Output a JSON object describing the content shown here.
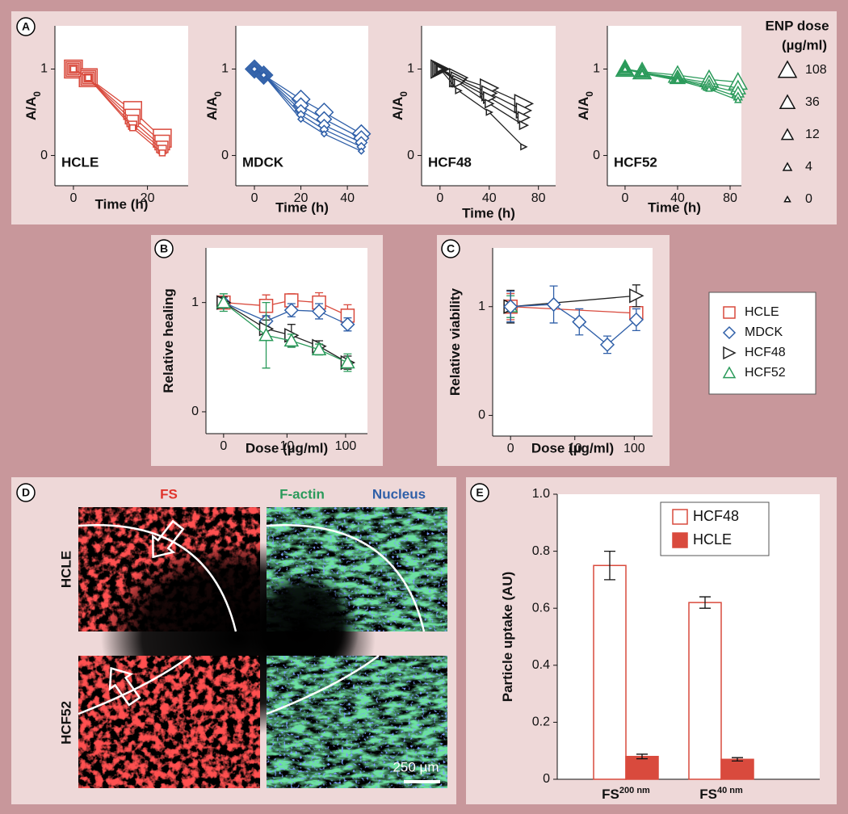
{
  "panel_labels": [
    "A",
    "B",
    "C",
    "D",
    "E"
  ],
  "dose_legend": {
    "title": "ENP dose",
    "unit": "(µg/ml)",
    "doses": [
      108,
      36,
      12,
      4,
      0
    ]
  },
  "cell_legend": [
    "HCLE",
    "MDCK",
    "HCF48",
    "HCF52"
  ],
  "panel_D": {
    "channels": [
      "FS",
      "F-actin",
      "Nucleus"
    ],
    "rows": [
      "HCLE",
      "HCF52"
    ],
    "scale_bar": "250 µm"
  },
  "chart_data": [
    {
      "type": "line",
      "annotation": "HCLE",
      "x_label": "Time (h)",
      "y_label": "A/A",
      "y_label_subscript": "0",
      "color": "#d94a3d",
      "marker": "square",
      "x": [
        0,
        4,
        16,
        24
      ],
      "xlim": [
        -5,
        31
      ],
      "xticks": [
        0,
        20
      ],
      "ylim": [
        -0.35,
        1.5
      ],
      "yticks": [
        0,
        1
      ],
      "series": [
        {
          "values": [
            1,
            0.9,
            0.52,
            0.2
          ]
        },
        {
          "values": [
            1,
            0.9,
            0.45,
            0.15
          ]
        },
        {
          "values": [
            1,
            0.9,
            0.4,
            0.1
          ]
        },
        {
          "values": [
            1,
            0.9,
            0.35,
            0.07
          ]
        },
        {
          "values": [
            1,
            0.9,
            0.32,
            0.03
          ]
        }
      ]
    },
    {
      "type": "line",
      "annotation": "MDCK",
      "x_label": "Time (h)",
      "y_label": "A/A",
      "y_label_subscript": "0",
      "color": "#2f5fa8",
      "marker": "diamond",
      "x": [
        0,
        4,
        20,
        30,
        46
      ],
      "xlim": [
        -8,
        49
      ],
      "xticks": [
        0,
        20,
        40
      ],
      "ylim": [
        -0.35,
        1.5
      ],
      "yticks": [
        0,
        1
      ],
      "series": [
        {
          "values": [
            1,
            0.93,
            0.65,
            0.5,
            0.25
          ]
        },
        {
          "values": [
            1,
            0.93,
            0.58,
            0.42,
            0.2
          ]
        },
        {
          "values": [
            1,
            0.93,
            0.52,
            0.35,
            0.15
          ]
        },
        {
          "values": [
            1,
            0.93,
            0.47,
            0.3,
            0.1
          ]
        },
        {
          "values": [
            1,
            0.93,
            0.42,
            0.25,
            0.05
          ]
        }
      ]
    },
    {
      "type": "line",
      "annotation": "HCF48",
      "x_label": "Time (h)",
      "y_label": "A/A",
      "y_label_subscript": "0",
      "color": "#222222",
      "marker": "triangle-right",
      "x": [
        0,
        15,
        40,
        68
      ],
      "xlim": [
        -15,
        94
      ],
      "xticks": [
        0,
        40,
        80
      ],
      "ylim": [
        -0.35,
        1.5
      ],
      "yticks": [
        0,
        1
      ],
      "series": [
        {
          "values": [
            1,
            0.9,
            0.78,
            0.6
          ]
        },
        {
          "values": [
            1,
            0.88,
            0.72,
            0.52
          ]
        },
        {
          "values": [
            1,
            0.86,
            0.67,
            0.44
          ]
        },
        {
          "values": [
            1,
            0.84,
            0.6,
            0.35
          ]
        },
        {
          "values": [
            1,
            0.75,
            0.5,
            0.1
          ]
        }
      ]
    },
    {
      "type": "line",
      "annotation": "HCF52",
      "x_label": "Time (h)",
      "y_label": "A/A",
      "y_label_subscript": "0",
      "color": "#2a9a5a",
      "marker": "triangle-up",
      "x": [
        0,
        13,
        40,
        64,
        86
      ],
      "xlim": [
        -13.5,
        88.6
      ],
      "xticks": [
        0,
        40,
        80
      ],
      "ylim": [
        -0.35,
        1.5
      ],
      "yticks": [
        0,
        1
      ],
      "series": [
        {
          "values": [
            1,
            0.97,
            0.93,
            0.88,
            0.85
          ]
        },
        {
          "values": [
            1,
            0.96,
            0.9,
            0.84,
            0.78
          ]
        },
        {
          "values": [
            1,
            0.96,
            0.89,
            0.81,
            0.73
          ]
        },
        {
          "values": [
            1,
            0.95,
            0.88,
            0.79,
            0.68
          ]
        },
        {
          "values": [
            1,
            0.95,
            0.87,
            0.77,
            0.64
          ]
        }
      ]
    },
    {
      "type": "line",
      "x_label": "Dose (µg/ml)",
      "y_label": "Relative healing",
      "xscale": "symlog",
      "x": [
        0,
        4,
        12,
        36,
        108
      ],
      "xlim": [
        -0.95,
        230
      ],
      "xticks": [
        0,
        10,
        100
      ],
      "ylim": [
        -0.2,
        1.5
      ],
      "yticks": [
        0,
        1
      ],
      "series": [
        {
          "color": "#d94a3d",
          "marker": "square",
          "values": [
            1.0,
            0.97,
            1.02,
            1.0,
            0.88
          ],
          "errors": [
            0.05,
            0.1,
            0.06,
            0.09,
            0.1
          ]
        },
        {
          "color": "#2f5fa8",
          "marker": "diamond",
          "values": [
            1.0,
            0.83,
            0.93,
            0.92,
            0.8
          ],
          "errors": [
            0.05,
            0.05,
            0.06,
            0.07,
            0.06
          ]
        },
        {
          "color": "#222222",
          "marker": "triangle-right",
          "values": [
            1.0,
            0.76,
            0.7,
            0.6,
            0.45
          ],
          "errors": [
            0.05,
            0.08,
            0.1,
            0.05,
            0.06
          ]
        },
        {
          "color": "#2a9a5a",
          "marker": "triangle-up",
          "values": [
            1.0,
            0.7,
            0.65,
            0.57,
            0.45
          ],
          "errors": [
            0.08,
            0.3,
            0.06,
            0.05,
            0.08
          ]
        }
      ]
    },
    {
      "type": "line",
      "x_label": "Dose (µg/ml)",
      "y_label": "Relative viability",
      "xscale": "symlog",
      "xlim": [
        -0.95,
        199
      ],
      "xticks": [
        0,
        10,
        100
      ],
      "ylim": [
        -0.19,
        1.54
      ],
      "yticks": [
        0,
        1
      ],
      "series": [
        {
          "color": "#d94a3d",
          "marker": "square",
          "x": [
            0,
            108
          ],
          "values": [
            1.0,
            0.94
          ],
          "errors": [
            0.12,
            0.05
          ]
        },
        {
          "color": "#2a9a5a",
          "marker": "triangle-up",
          "x": [
            0
          ],
          "values": [
            1.0
          ],
          "errors": [
            0.1
          ]
        },
        {
          "color": "#222222",
          "marker": "triangle-right",
          "x": [
            0,
            108
          ],
          "values": [
            1.0,
            1.1
          ],
          "errors": [
            0.15,
            0.1
          ]
        },
        {
          "color": "#2f5fa8",
          "marker": "diamond",
          "x": [
            0,
            4,
            12,
            36,
            108
          ],
          "values": [
            1.0,
            1.02,
            0.86,
            0.65,
            0.88
          ],
          "errors": [
            0.14,
            0.17,
            0.12,
            0.08,
            0.1
          ]
        }
      ]
    },
    {
      "type": "bar",
      "y_label": "Particle uptake (AU)",
      "categories": [
        "FS",
        "FS"
      ],
      "category_superscripts": [
        "200 nm",
        "40 nm"
      ],
      "ylim": [
        0,
        1
      ],
      "yticks": [
        0,
        0.2,
        0.4,
        0.6,
        0.8,
        {
          "value": 1,
          "label": "1.0"
        }
      ],
      "series": [
        {
          "name": "HCF48",
          "color": "#d94a3d",
          "fill": "#ffffff",
          "values": [
            0.75,
            0.62
          ],
          "errors": [
            0.05,
            0.02
          ]
        },
        {
          "name": "HCLE",
          "color": "#d94a3d",
          "fill": "#d94a3d",
          "values": [
            0.08,
            0.07
          ],
          "errors": [
            0.008,
            0.006
          ]
        }
      ]
    }
  ]
}
